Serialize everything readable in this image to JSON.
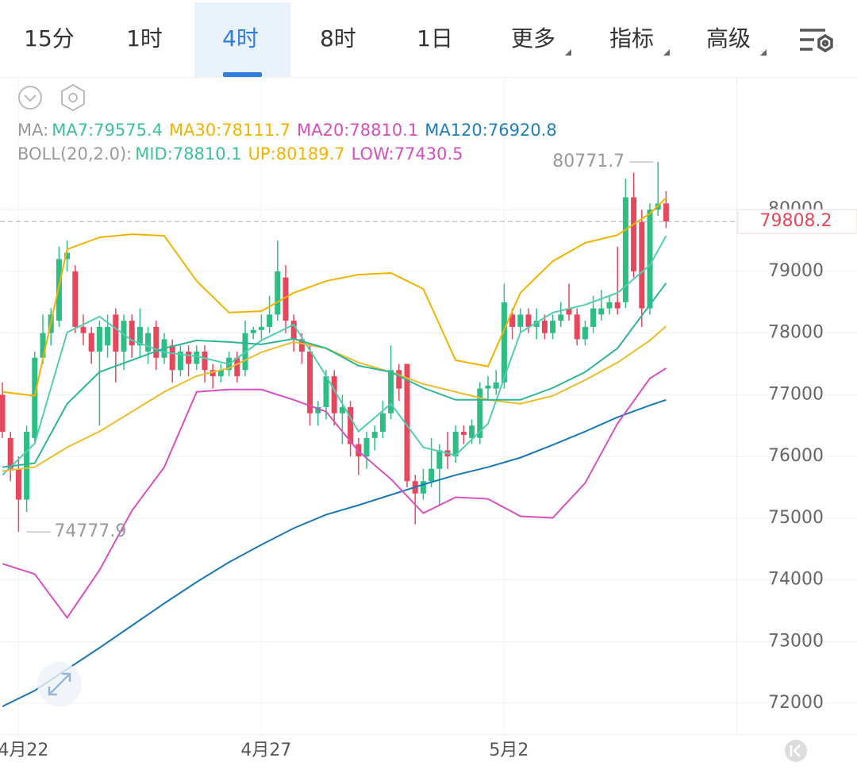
{
  "tabs": [
    {
      "label": "15分",
      "selected": false
    },
    {
      "label": "1时",
      "selected": false
    },
    {
      "label": "4时",
      "selected": true
    },
    {
      "label": "8时",
      "selected": false
    },
    {
      "label": "1日",
      "selected": false
    },
    {
      "label": "更多",
      "selected": false
    },
    {
      "label": "指标",
      "selected": false
    },
    {
      "label": "高级",
      "selected": false
    }
  ],
  "chart_data": {
    "type": "candlestick",
    "up_color": "#2ebd85",
    "down_color": "#e5475d",
    "categories": [
      null,
      null,
      "4月22",
      null,
      null,
      null,
      null,
      null,
      null,
      null,
      null,
      null,
      null,
      null,
      null,
      null,
      null,
      null,
      null,
      null,
      null,
      null,
      null,
      null,
      null,
      null,
      null,
      null,
      null,
      null,
      null,
      null,
      "4月27",
      null,
      null,
      null,
      null,
      null,
      null,
      null,
      null,
      null,
      null,
      null,
      null,
      null,
      null,
      null,
      null,
      null,
      null,
      null,
      null,
      null,
      null,
      null,
      null,
      null,
      null,
      null,
      null,
      null,
      "5月2",
      null,
      null,
      null,
      null,
      null,
      null,
      null,
      null,
      null,
      null,
      null,
      null,
      null,
      null,
      null,
      null,
      null,
      null,
      null,
      null
    ],
    "open": [
      77000,
      76300,
      75800,
      75300,
      76300,
      77600,
      78000,
      78200,
      79200,
      79000,
      78100,
      78000,
      77700,
      77800,
      78300,
      77700,
      78200,
      77800,
      77700,
      78100,
      77600,
      77800,
      77400,
      77700,
      77500,
      77700,
      77400,
      77300,
      77400,
      77600,
      77400,
      78000,
      78050,
      78100,
      78300,
      78900,
      78200,
      77900,
      77700,
      76700,
      76800,
      77300,
      76700,
      76800,
      76200,
      76000,
      76300,
      76400,
      76700,
      77400,
      77500,
      75600,
      75400,
      75600,
      75800,
      76100,
      76000,
      76400,
      76300,
      76300,
      77100,
      77100,
      77200,
      78300,
      78100,
      78300,
      78100,
      78200,
      78000,
      78200,
      78400,
      78300,
      77900,
      78100,
      78300,
      78400,
      78500,
      78500,
      80200,
      79800,
      78400,
      80000,
      80100
    ],
    "high": [
      77200,
      76400,
      76000,
      76500,
      77700,
      78300,
      78400,
      79400,
      79500,
      79100,
      78300,
      78100,
      78200,
      78300,
      78400,
      78300,
      78300,
      78400,
      78100,
      78200,
      78000,
      77900,
      77800,
      77800,
      77800,
      77800,
      77500,
      77500,
      77700,
      77700,
      78200,
      78100,
      78300,
      78600,
      79500,
      79100,
      78300,
      78000,
      77800,
      76900,
      77400,
      77400,
      77000,
      76900,
      76300,
      76400,
      76500,
      76900,
      77800,
      77500,
      77500,
      75700,
      75800,
      76300,
      76200,
      76400,
      76500,
      76500,
      76600,
      77200,
      77300,
      77400,
      78800,
      78400,
      78400,
      78400,
      78400,
      78300,
      78300,
      78500,
      78800,
      78400,
      78200,
      78600,
      78700,
      78600,
      79400,
      80500,
      80600,
      80000,
      80100,
      80771.7,
      80300
    ],
    "low": [
      76300,
      75600,
      74777.9,
      75100,
      76200,
      77500,
      77800,
      78100,
      79000,
      78000,
      77800,
      77500,
      76500,
      77600,
      77200,
      77400,
      77600,
      77600,
      77500,
      77400,
      77500,
      77200,
      77300,
      77300,
      77400,
      77200,
      77100,
      77200,
      77300,
      77200,
      77300,
      77900,
      77900,
      78000,
      78200,
      78000,
      77700,
      77500,
      76500,
      76500,
      76600,
      76500,
      76200,
      76000,
      75700,
      75800,
      76100,
      76300,
      76600,
      76900,
      75500,
      74900,
      75300,
      75500,
      75200,
      75800,
      75900,
      76200,
      76200,
      76200,
      76900,
      77000,
      77100,
      77900,
      78000,
      78000,
      77900,
      77900,
      77900,
      78100,
      78200,
      77800,
      77800,
      78000,
      78200,
      78300,
      78300,
      78400,
      78900,
      78100,
      78300,
      79900,
      79700
    ],
    "close": [
      76400,
      75800,
      75300,
      76400,
      77600,
      78000,
      78300,
      79200,
      79300,
      78100,
      78000,
      77700,
      78100,
      78100,
      77700,
      78200,
      77800,
      78100,
      78000,
      77600,
      77900,
      77400,
      77700,
      77500,
      77700,
      77400,
      77300,
      77400,
      77600,
      77300,
      78000,
      78050,
      78100,
      78300,
      79000,
      78200,
      77900,
      77700,
      76700,
      76800,
      77300,
      76700,
      76800,
      76200,
      76000,
      76300,
      76400,
      76700,
      77400,
      77100,
      75600,
      75400,
      75600,
      75800,
      76100,
      76000,
      76400,
      76350,
      76500,
      77100,
      77150,
      77200,
      78500,
      78100,
      78300,
      78100,
      78200,
      78000,
      78200,
      78300,
      78300,
      77900,
      78100,
      78400,
      78400,
      78500,
      78400,
      80200,
      79000,
      78400,
      80000,
      80100,
      79808.2
    ],
    "line_x": [
      0,
      4,
      8,
      12,
      16,
      20,
      24,
      28,
      32,
      36,
      40,
      44,
      48,
      52,
      56,
      60,
      64,
      68,
      72,
      76,
      80,
      82
    ],
    "indicators": [
      {
        "title": "MA:",
        "items": [
          {
            "name": "MA7:",
            "value": 79575.4,
            "color": "#3dbfa0",
            "line_color": "#52cdb0",
            "values": [
              75699,
              76212,
              78010,
              78267,
              77881,
              77689,
              77625,
              77496,
              77881,
              78138,
              77304,
              76405,
              76854,
              76148,
              76020,
              76533,
              78010,
              78331,
              78459,
              78652,
              79101,
              79575.4
            ]
          },
          {
            "name": "MA30:",
            "value": 78111.7,
            "color": "#f0b400",
            "line_color": "#ecbd2a",
            "values": [
              75763,
              75827,
              76148,
              76405,
              76726,
              77047,
              77304,
              77432,
              77689,
              77856,
              77753,
              77522,
              77368,
              77175,
              77047,
              76918,
              76854,
              76983,
              77239,
              77522,
              77881,
              78111.7
            ]
          },
          {
            "name": "MA20:",
            "value": 78810.1,
            "color": "#d44fbc"
          },
          {
            "name": "MA120:",
            "value": 76920.8,
            "color": "#1f7fb8",
            "line_color": "#1a78b3",
            "values": [
              71949,
              72206,
              72553,
              72899,
              73259,
              73619,
              73965,
              74286,
              74569,
              74838,
              75057,
              75211,
              75378,
              75545,
              75699,
              75827,
              75981,
              76187,
              76405,
              76636,
              76829,
              76918
            ]
          }
        ]
      },
      {
        "title": "BOLL(20,2.0):",
        "items": [
          {
            "name": "MID:",
            "value": 78810.1,
            "color": "#3dbfa0",
            "line_color": "#2db59a",
            "values": [
              75827,
              75891,
              76854,
              77368,
              77560,
              77753,
              77881,
              77856,
              77817,
              77907,
              77753,
              77471,
              77368,
              77111,
              76918,
              76918,
              76918,
              77111,
              77368,
              77753,
              78459,
              78810.1
            ]
          },
          {
            "name": "UP:",
            "value": 80189.7,
            "color": "#f0b400",
            "line_color": "#f0b400",
            "values": [
              77047,
              76983,
              79358,
              79551,
              79602,
              79576,
              78844,
              78331,
              78356,
              78652,
              78844,
              78947,
              78973,
              78716,
              77560,
              77458,
              78652,
              79165,
              79461,
              79589,
              79936,
              80189.7
            ]
          },
          {
            "name": "LOW:",
            "value": 77430.5,
            "color": "#d44fbc",
            "line_color": "#d84fc0",
            "values": [
              74261,
              74094,
              73387,
              74158,
              75121,
              75827,
              77047,
              77085,
              77085,
              76918,
              76726,
              76084,
              75634,
              75082,
              75339,
              75313,
              75031,
              75005,
              75570,
              76533,
              77265,
              77430.5
            ]
          }
        ]
      }
    ],
    "ylim": [
      71500,
      82150
    ],
    "yticks": [
      72000,
      73000,
      74000,
      75000,
      76000,
      77000,
      78000,
      79000,
      80000
    ],
    "grid": true
  }
}
